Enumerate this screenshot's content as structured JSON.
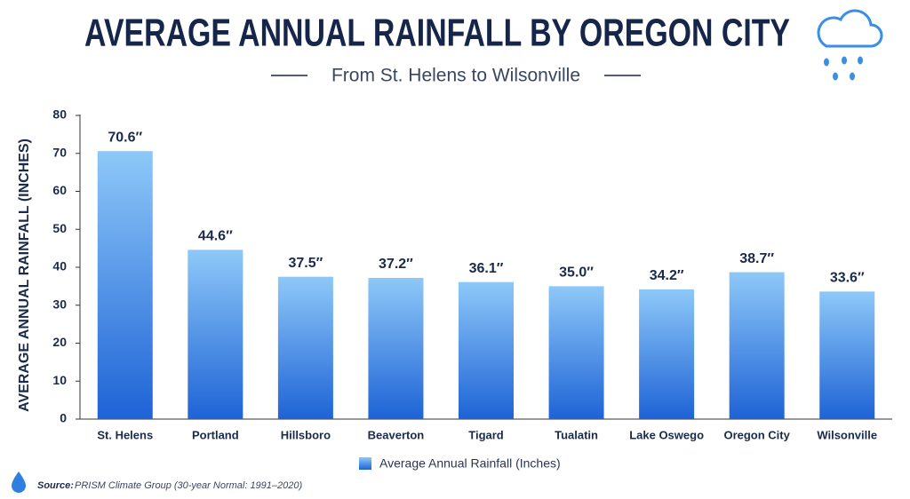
{
  "chart_data": {
    "type": "bar",
    "title": "AVERAGE ANNUAL RAINFALL BY OREGON CITY",
    "subtitle": "From St. Helens to Wilsonville",
    "y_axis_label": "AVERAGE ANNUAL RAINFALL (INCHES)",
    "categories": [
      "St. Helens",
      "Portland",
      "Hillsboro",
      "Beaverton",
      "Tigard",
      "Tualatin",
      "Lake Oswego",
      "Oregon City",
      "Wilsonville"
    ],
    "series": [
      {
        "name": "Average Annual Rainfall (Inches)",
        "color": "#1e63d6",
        "values": [
          70.6,
          44.6,
          37.5,
          37.2,
          36.1,
          35.0,
          34.2,
          38.7,
          33.6
        ],
        "value_labels": [
          "70.6″",
          "44.6″",
          "37.5″",
          "37.2″",
          "36.1″",
          "35.0″",
          "34.2″",
          "38.7″",
          "33.6″"
        ]
      }
    ],
    "ylim": [
      0,
      80
    ],
    "yticks": [
      0,
      10,
      20,
      30,
      40,
      50,
      60,
      70,
      80
    ],
    "grid": false,
    "source_label": "Source:",
    "source": "PRISM Climate Group (30-year Normal: 1991–2020)"
  }
}
